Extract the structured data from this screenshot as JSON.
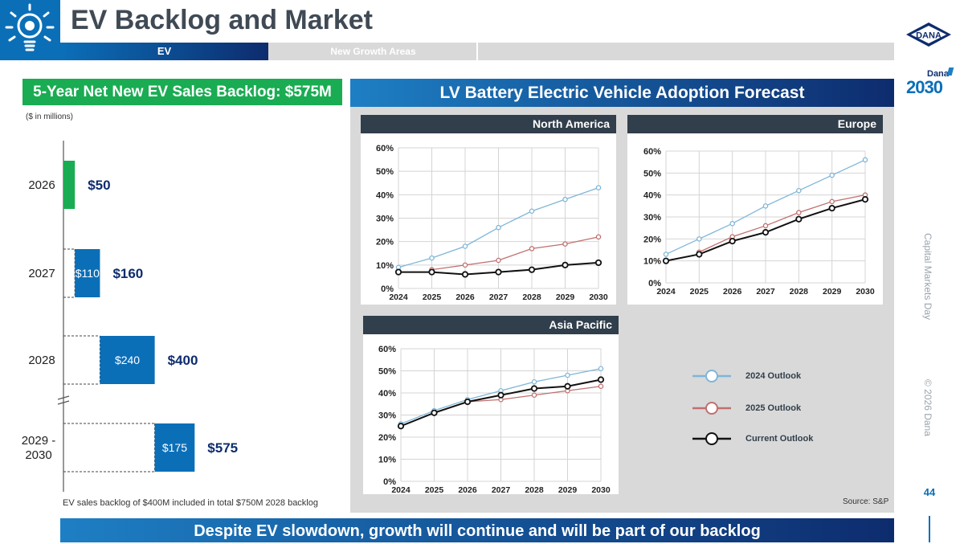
{
  "header": {
    "title": "EV Backlog and Market",
    "tabs": [
      {
        "label": "EV",
        "active": true
      },
      {
        "label": "New Growth Areas",
        "active": false
      }
    ],
    "logo_text": "DANA",
    "badge": {
      "brand": "Dana",
      "year": "2030"
    }
  },
  "colors": {
    "accent_blue": "#0b6fb8",
    "navy": "#0d2c6e",
    "green": "#1aac52",
    "outlook_2024": "#7fb6d8",
    "outlook_2025": "#c0706f",
    "outlook_current": "#111111"
  },
  "backlog": {
    "header": "5-Year Net New EV Sales Backlog: $575M",
    "units_note": "($ in millions)",
    "footnote": "EV sales backlog of $400M included in total $750M 2028 backlog"
  },
  "forecast": {
    "header": "LV Battery Electric Vehicle Adoption Forecast",
    "source": "Source: S&P",
    "legend": [
      {
        "label": "2024 Outlook",
        "color": "#7fb6d8"
      },
      {
        "label": "2025 Outlook",
        "color": "#c0706f"
      },
      {
        "label": "Current Outlook",
        "color": "#111111"
      }
    ]
  },
  "chart_data": [
    {
      "type": "bar",
      "subtype": "horizontal-waterfall",
      "title": "5-Year Net New EV Sales Backlog: $575M",
      "units": "($ in millions)",
      "categories": [
        "2026",
        "2027",
        "2028",
        "2029 -\n2030"
      ],
      "increments": [
        50,
        110,
        240,
        175
      ],
      "increment_labels": [
        "",
        "$110",
        "$240",
        "$175"
      ],
      "cumulative": [
        50,
        160,
        400,
        575
      ],
      "cumulative_labels": [
        "$50",
        "$160",
        "$400",
        "$575"
      ],
      "bar_colors": [
        "#1aac52",
        "#0b6fb8",
        "#0b6fb8",
        "#0b6fb8"
      ],
      "axis_break": true
    },
    {
      "type": "line",
      "title": "North America",
      "x": [
        "2024",
        "2025",
        "2026",
        "2027",
        "2028",
        "2029",
        "2030"
      ],
      "yticks": [
        "0%",
        "10%",
        "20%",
        "30%",
        "40%",
        "50%",
        "60%"
      ],
      "ylim": [
        0,
        60
      ],
      "grid": true,
      "series": [
        {
          "name": "2024 Outlook",
          "values": [
            9,
            13,
            18,
            26,
            33,
            38,
            43
          ]
        },
        {
          "name": "2025 Outlook",
          "values": [
            null,
            8,
            10,
            12,
            17,
            19,
            22
          ]
        },
        {
          "name": "Current Outlook",
          "values": [
            7,
            7,
            6,
            7,
            8,
            10,
            11
          ]
        }
      ]
    },
    {
      "type": "line",
      "title": "Europe",
      "x": [
        "2024",
        "2025",
        "2026",
        "2027",
        "2028",
        "2029",
        "2030"
      ],
      "yticks": [
        "0%",
        "10%",
        "20%",
        "30%",
        "40%",
        "50%",
        "60%"
      ],
      "ylim": [
        0,
        60
      ],
      "grid": true,
      "series": [
        {
          "name": "2024 Outlook",
          "values": [
            13,
            20,
            27,
            35,
            42,
            49,
            56
          ]
        },
        {
          "name": "2025 Outlook",
          "values": [
            null,
            14,
            21,
            26,
            32,
            37,
            40
          ]
        },
        {
          "name": "Current Outlook",
          "values": [
            10,
            13,
            19,
            23,
            29,
            34,
            38
          ]
        }
      ]
    },
    {
      "type": "line",
      "title": "Asia Pacific",
      "x": [
        "2024",
        "2025",
        "2026",
        "2027",
        "2028",
        "2029",
        "2030"
      ],
      "yticks": [
        "0%",
        "10%",
        "20%",
        "30%",
        "40%",
        "50%",
        "60%"
      ],
      "ylim": [
        0,
        60
      ],
      "grid": true,
      "series": [
        {
          "name": "2024 Outlook",
          "values": [
            26,
            32,
            37,
            41,
            45,
            48,
            51
          ]
        },
        {
          "name": "2025 Outlook",
          "values": [
            null,
            31,
            36,
            37,
            39,
            41,
            43
          ]
        },
        {
          "name": "Current Outlook",
          "values": [
            25,
            31,
            36,
            39,
            42,
            43,
            46
          ]
        }
      ]
    }
  ],
  "banner": {
    "text": "Despite EV slowdown, growth will continue and will be part of our backlog"
  },
  "sidebar": {
    "event": "Capital Markets Day",
    "copyright": "© 2026 Dana"
  },
  "page_number": "44"
}
